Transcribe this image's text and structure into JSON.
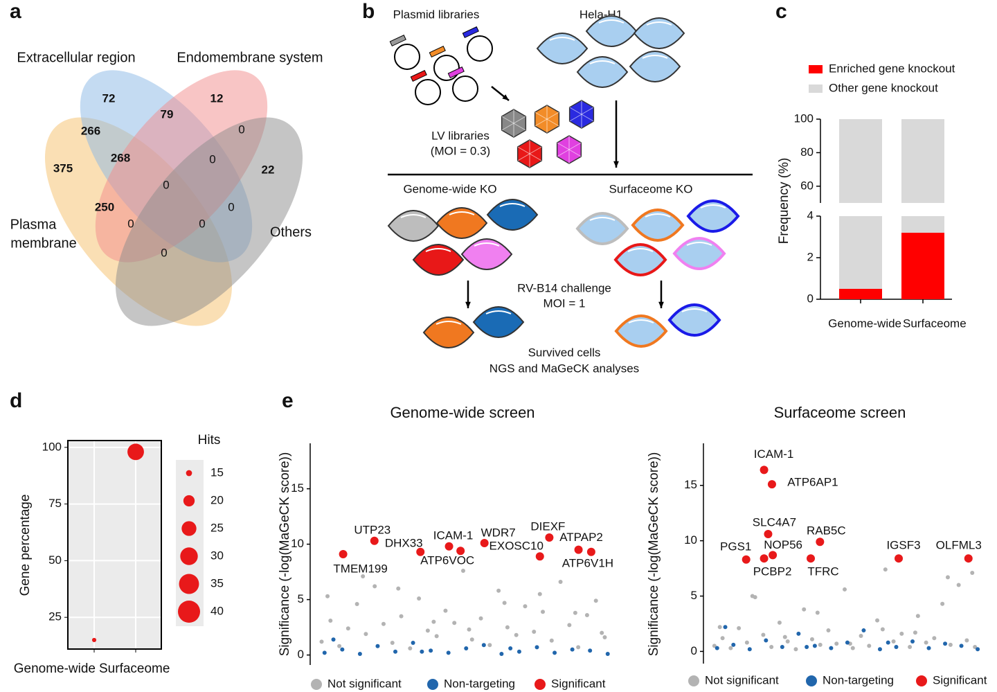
{
  "panel_labels": [
    "a",
    "b",
    "c",
    "d",
    "e"
  ],
  "venn": {
    "sets": [
      {
        "label": [
          "Extracellular region"
        ],
        "color": "#8ab8e6"
      },
      {
        "label": [
          "Endomembrane system"
        ],
        "color": "#f28b8b"
      },
      {
        "label": [
          "Plasma",
          "membrane"
        ],
        "color": "#f5c06a"
      },
      {
        "label": [
          "Others"
        ],
        "color": "#8c8c8c"
      }
    ],
    "counts": [
      72,
      12,
      266,
      79,
      0,
      22,
      375,
      268,
      0,
      0,
      250,
      0,
      0,
      0,
      0
    ]
  },
  "schematic": {
    "plasmid_libraries": "Plasmid libraries",
    "cell_line": "Hela-H1",
    "lv_libraries": "LV libraries",
    "lv_moi": "(MOI = 0.3)",
    "genome_ko": "Genome-wide KO",
    "surfaceome_ko": "Surfaceome KO",
    "challenge": "RV-B14 challenge",
    "challenge_moi": "MOI = 1",
    "survived": "Survived cells",
    "analysis": "NGS and MaGeCK analyses"
  },
  "chart_data": [
    {
      "type": "stacked_bar",
      "categories": [
        "Genome-wide",
        "Surfaceome"
      ],
      "series": [
        {
          "name": "Enriched gene knockout",
          "color": "#ff0000",
          "values": [
            0.5,
            3.2
          ]
        },
        {
          "name": "Other gene knockout",
          "color": "#d9d9d9",
          "values": [
            99.5,
            96.8
          ]
        }
      ],
      "ylabel": "Frequency (%)",
      "ylim": [
        0,
        100
      ],
      "y_break": [
        4,
        50
      ],
      "yticks": [
        0,
        2,
        4,
        60,
        80,
        100
      ]
    },
    {
      "type": "bubble",
      "categories": [
        "Genome-wide",
        "Surfaceome"
      ],
      "values": [
        15,
        98
      ],
      "sizes": [
        14,
        28
      ],
      "color": "#e8191a",
      "ylabel": "Gene percentage",
      "ylim": [
        11,
        103
      ],
      "yticks": [
        25,
        50,
        75,
        100
      ],
      "grid": true,
      "legend_title": "Hits",
      "legend_sizes": [
        15,
        20,
        25,
        30,
        35,
        40
      ]
    },
    {
      "type": "scatter",
      "title": "Genome-wide screen",
      "ylabel": "Significance (-log(MaGeCK score))",
      "xlim": [
        0,
        100
      ],
      "ylim": [
        -0.9,
        19.1
      ],
      "yticks": [
        0,
        5,
        10,
        15
      ],
      "series": [
        {
          "name": "Not significant",
          "color": "#b3b3b3",
          "x": [
            2,
            5,
            8,
            11,
            14,
            17,
            20,
            23,
            26,
            29,
            32,
            35,
            38,
            41,
            44,
            47,
            50,
            53,
            56,
            59,
            62,
            65,
            68,
            71,
            74,
            77,
            80,
            83,
            86,
            89,
            92,
            95,
            98,
            4,
            16,
            28,
            40,
            52,
            64,
            76,
            88,
            97
          ],
          "values": [
            1.2,
            3.1,
            0.8,
            2.4,
            4.6,
            1.9,
            6.2,
            2.8,
            1.1,
            3.5,
            0.6,
            5.1,
            2.2,
            1.7,
            4.0,
            2.9,
            7.6,
            1.4,
            3.3,
            0.9,
            5.8,
            2.5,
            1.8,
            4.4,
            2.1,
            3.9,
            1.3,
            6.6,
            2.7,
            0.7,
            3.6,
            4.9,
            1.6,
            5.3,
            7.1,
            6.0,
            3.0,
            2.3,
            4.7,
            5.5,
            3.8,
            2.0
          ]
        },
        {
          "name": "Non-targeting",
          "color": "#2166ac",
          "x": [
            3,
            9,
            15,
            21,
            27,
            33,
            39,
            45,
            51,
            57,
            63,
            69,
            75,
            81,
            87,
            93,
            99,
            6,
            36,
            66
          ],
          "values": [
            0.2,
            0.5,
            0.1,
            0.8,
            0.3,
            1.1,
            0.4,
            0.2,
            0.6,
            0.9,
            0.1,
            0.3,
            0.7,
            0.2,
            0.5,
            0.4,
            0.1,
            1.4,
            0.3,
            0.6
          ]
        },
        {
          "name": "Significant",
          "color": "#e8191a",
          "x": [
            9.3,
            19.9,
            35.5,
            45.2,
            49.1,
            57.2,
            76,
            79.2,
            89.1,
            93.4
          ],
          "values": [
            9.1,
            10.3,
            9.3,
            9.8,
            9.4,
            10.1,
            8.9,
            10.6,
            9.5,
            9.3
          ],
          "labels": [
            "TMEM199",
            "UTP23",
            "DHX33",
            "ICAM-1",
            "ATP6VOC",
            "WDR7",
            "EXOSC10",
            "DIEXF",
            "ATPAP2",
            "ATP6V1H"
          ]
        }
      ]
    },
    {
      "type": "scatter",
      "title": "Surfaceome screen",
      "ylabel": "Significance (-log(MaGeCK score))",
      "xlim": [
        0,
        100
      ],
      "ylim": [
        -1.1,
        18.8
      ],
      "yticks": [
        0,
        5,
        10,
        15
      ],
      "series": [
        {
          "name": "Not significant",
          "color": "#b3b3b3",
          "x": [
            2,
            5,
            8,
            11,
            14,
            17,
            20,
            23,
            26,
            29,
            32,
            35,
            38,
            41,
            44,
            47,
            50,
            53,
            56,
            59,
            62,
            65,
            68,
            71,
            74,
            77,
            80,
            83,
            86,
            89,
            92,
            95,
            98,
            4,
            16,
            28,
            40,
            52,
            64,
            76,
            88,
            97
          ],
          "values": [
            0.5,
            1.2,
            0.3,
            2.1,
            0.8,
            4.9,
            1.5,
            0.4,
            2.6,
            0.9,
            0.2,
            3.8,
            1.1,
            0.6,
            1.9,
            0.7,
            5.6,
            0.3,
            1.4,
            0.5,
            2.8,
            7.4,
            0.9,
            1.6,
            0.4,
            3.2,
            0.8,
            1.2,
            4.3,
            0.6,
            6.0,
            1.0,
            0.4,
            2.2,
            5.0,
            1.3,
            3.5,
            0.7,
            2.0,
            1.7,
            6.7,
            7.1
          ]
        },
        {
          "name": "Non-targeting",
          "color": "#2166ac",
          "x": [
            3,
            9,
            15,
            21,
            27,
            33,
            39,
            45,
            51,
            57,
            63,
            69,
            75,
            81,
            87,
            93,
            99,
            6,
            36,
            66
          ],
          "values": [
            0.3,
            0.6,
            0.2,
            1.0,
            0.4,
            1.6,
            0.5,
            0.3,
            0.8,
            1.9,
            0.2,
            0.4,
            0.9,
            0.3,
            0.7,
            0.5,
            0.2,
            2.2,
            0.4,
            0.8
          ]
        },
        {
          "name": "Significant",
          "color": "#e8191a",
          "x": [
            20.3,
            23.2,
            21.8,
            40.9,
            13.7,
            23.5,
            20.3,
            37.5,
            69.9,
            95.6
          ],
          "values": [
            16.4,
            15.1,
            10.6,
            9.9,
            8.3,
            8.7,
            8.4,
            8.4,
            8.4,
            8.4
          ],
          "labels": [
            "ICAM-1",
            "ATP6AP1",
            "SLC4A7",
            "RAB5C",
            "PGS1",
            "NOP56",
            "PCBP2",
            "TFRC",
            "IGSF3",
            "OLFML3"
          ]
        }
      ]
    }
  ]
}
